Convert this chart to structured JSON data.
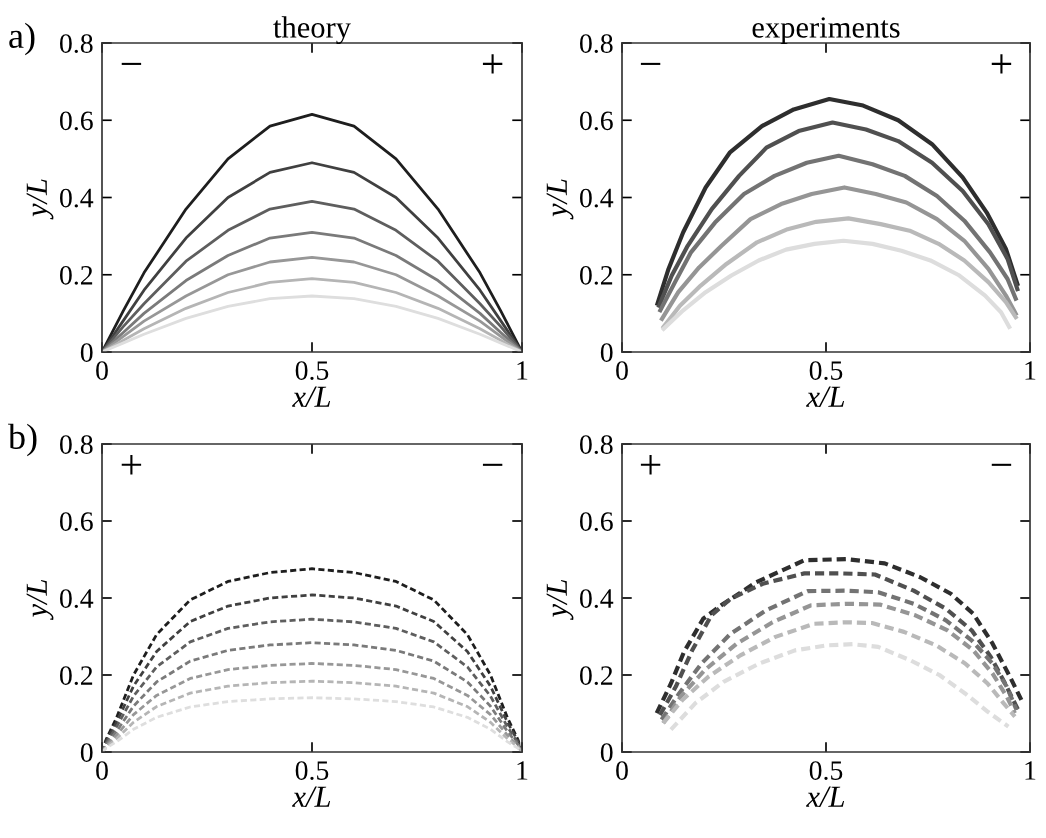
{
  "chart_data": [
    {
      "type": "line",
      "title": "theory",
      "xlabel": "x/L",
      "ylabel": "y/L",
      "annotations": [
        "a)",
        "−",
        "+"
      ],
      "line_style": "solid",
      "marker": "none",
      "grid": false,
      "legend": false,
      "xlim": [
        0,
        1
      ],
      "xticks": [
        0,
        0.5,
        1
      ],
      "ylim": [
        0,
        0.8
      ],
      "yticks": [
        0,
        0.2,
        0.4,
        0.6,
        0.8
      ],
      "x": [
        0,
        0.05,
        0.1,
        0.2,
        0.3,
        0.4,
        0.5,
        0.6,
        0.7,
        0.8,
        0.9,
        0.95,
        1
      ],
      "series": [
        {
          "color": "#1e1e1e",
          "values": [
            0,
            0.105,
            0.205,
            0.37,
            0.5,
            0.585,
            0.615,
            0.585,
            0.5,
            0.37,
            0.205,
            0.105,
            0
          ]
        },
        {
          "color": "#404040",
          "values": [
            0,
            0.08,
            0.16,
            0.295,
            0.4,
            0.465,
            0.49,
            0.465,
            0.4,
            0.295,
            0.16,
            0.08,
            0
          ]
        },
        {
          "color": "#5e5e5e",
          "values": [
            0,
            0.065,
            0.125,
            0.235,
            0.315,
            0.37,
            0.39,
            0.37,
            0.315,
            0.235,
            0.125,
            0.065,
            0
          ]
        },
        {
          "color": "#7a7a7a",
          "values": [
            0,
            0.05,
            0.1,
            0.185,
            0.25,
            0.295,
            0.31,
            0.295,
            0.25,
            0.185,
            0.1,
            0.05,
            0
          ]
        },
        {
          "color": "#979797",
          "values": [
            0,
            0.04,
            0.08,
            0.145,
            0.2,
            0.233,
            0.245,
            0.233,
            0.2,
            0.145,
            0.08,
            0.04,
            0
          ]
        },
        {
          "color": "#b5b5b5",
          "values": [
            0,
            0.03,
            0.06,
            0.113,
            0.154,
            0.18,
            0.19,
            0.18,
            0.154,
            0.113,
            0.06,
            0.03,
            0
          ]
        },
        {
          "color": "#dedede",
          "values": [
            0,
            0.023,
            0.046,
            0.087,
            0.118,
            0.138,
            0.145,
            0.138,
            0.118,
            0.087,
            0.046,
            0.023,
            0
          ]
        }
      ]
    },
    {
      "type": "line",
      "title": "experiments",
      "xlabel": "x/L",
      "ylabel": "y/L",
      "annotations": [
        "−",
        "+"
      ],
      "line_style": "solid",
      "marker": "none",
      "grid": false,
      "legend": false,
      "xlim": [
        0,
        1
      ],
      "xticks": [
        0,
        0.5,
        1
      ],
      "ylim": [
        0,
        0.8
      ],
      "yticks": [
        0,
        0.2,
        0.4,
        0.6,
        0.8
      ],
      "series": [
        {
          "color": "#2e2e2e",
          "x": [
            0.087,
            0.114,
            0.15,
            0.205,
            0.264,
            0.343,
            0.421,
            0.508,
            0.591,
            0.677,
            0.76,
            0.835,
            0.894,
            0.941,
            0.969
          ],
          "values": [
            0.125,
            0.215,
            0.31,
            0.426,
            0.516,
            0.585,
            0.628,
            0.655,
            0.638,
            0.6,
            0.538,
            0.452,
            0.361,
            0.267,
            0.176
          ]
        },
        {
          "color": "#505050",
          "x": [
            0.091,
            0.122,
            0.161,
            0.22,
            0.287,
            0.354,
            0.433,
            0.516,
            0.598,
            0.677,
            0.76,
            0.835,
            0.898,
            0.945,
            0.969
          ],
          "values": [
            0.12,
            0.198,
            0.275,
            0.37,
            0.456,
            0.529,
            0.572,
            0.594,
            0.576,
            0.546,
            0.49,
            0.417,
            0.331,
            0.241,
            0.163
          ]
        },
        {
          "color": "#737373",
          "x": [
            0.094,
            0.13,
            0.169,
            0.228,
            0.299,
            0.374,
            0.453,
            0.531,
            0.614,
            0.693,
            0.772,
            0.839,
            0.902,
            0.945,
            0.965
          ],
          "values": [
            0.108,
            0.181,
            0.258,
            0.335,
            0.409,
            0.456,
            0.49,
            0.508,
            0.486,
            0.456,
            0.404,
            0.34,
            0.258,
            0.189,
            0.138
          ]
        },
        {
          "color": "#959595",
          "x": [
            0.098,
            0.138,
            0.189,
            0.244,
            0.315,
            0.39,
            0.465,
            0.545,
            0.622,
            0.697,
            0.772,
            0.839,
            0.898,
            0.941,
            0.965
          ],
          "values": [
            0.086,
            0.155,
            0.219,
            0.275,
            0.344,
            0.383,
            0.409,
            0.426,
            0.409,
            0.387,
            0.344,
            0.288,
            0.215,
            0.146,
            0.099
          ]
        },
        {
          "color": "#b9b9b9",
          "x": [
            0.102,
            0.142,
            0.193,
            0.256,
            0.331,
            0.406,
            0.476,
            0.555,
            0.634,
            0.705,
            0.776,
            0.839,
            0.898,
            0.941,
            0.965
          ],
          "values": [
            0.065,
            0.12,
            0.172,
            0.228,
            0.284,
            0.318,
            0.337,
            0.346,
            0.331,
            0.314,
            0.28,
            0.237,
            0.181,
            0.129,
            0.09
          ]
        },
        {
          "color": "#dddddd",
          "x": [
            0.102,
            0.15,
            0.205,
            0.268,
            0.335,
            0.402,
            0.472,
            0.543,
            0.614,
            0.685,
            0.756,
            0.827,
            0.89,
            0.929,
            0.949
          ],
          "values": [
            0.06,
            0.108,
            0.155,
            0.198,
            0.237,
            0.265,
            0.28,
            0.288,
            0.28,
            0.262,
            0.237,
            0.198,
            0.146,
            0.103,
            0.065
          ]
        }
      ]
    },
    {
      "type": "line",
      "xlabel": "x/L",
      "ylabel": "y/L",
      "annotations": [
        "b)",
        "+",
        "−"
      ],
      "line_style": "dashed",
      "marker": "none",
      "grid": false,
      "legend": false,
      "xlim": [
        0,
        1
      ],
      "xticks": [
        0,
        0.5,
        1
      ],
      "ylim": [
        0,
        0.8
      ],
      "yticks": [
        0,
        0.2,
        0.4,
        0.6,
        0.8
      ],
      "x": [
        0,
        0.01,
        0.035,
        0.075,
        0.13,
        0.21,
        0.3,
        0.4,
        0.5,
        0.6,
        0.7,
        0.79,
        0.87,
        0.925,
        0.965,
        0.99,
        1
      ],
      "series": [
        {
          "color": "#1e1e1e",
          "values": [
            0,
            0.033,
            0.09,
            0.2,
            0.305,
            0.395,
            0.443,
            0.466,
            0.476,
            0.466,
            0.443,
            0.395,
            0.305,
            0.2,
            0.09,
            0.033,
            0
          ]
        },
        {
          "color": "#404040",
          "values": [
            0,
            0.029,
            0.078,
            0.171,
            0.261,
            0.339,
            0.379,
            0.4,
            0.408,
            0.4,
            0.379,
            0.339,
            0.261,
            0.171,
            0.078,
            0.029,
            0
          ]
        },
        {
          "color": "#5e5e5e",
          "values": [
            0,
            0.024,
            0.066,
            0.145,
            0.221,
            0.286,
            0.321,
            0.338,
            0.345,
            0.338,
            0.321,
            0.286,
            0.221,
            0.145,
            0.066,
            0.024,
            0
          ]
        },
        {
          "color": "#7a7a7a",
          "values": [
            0,
            0.02,
            0.054,
            0.119,
            0.182,
            0.236,
            0.264,
            0.278,
            0.284,
            0.278,
            0.264,
            0.236,
            0.182,
            0.119,
            0.054,
            0.02,
            0
          ]
        },
        {
          "color": "#979797",
          "values": [
            0,
            0.016,
            0.044,
            0.097,
            0.147,
            0.191,
            0.214,
            0.225,
            0.23,
            0.225,
            0.214,
            0.191,
            0.147,
            0.097,
            0.044,
            0.016,
            0
          ]
        },
        {
          "color": "#b5b5b5",
          "values": [
            0,
            0.013,
            0.035,
            0.077,
            0.118,
            0.153,
            0.171,
            0.18,
            0.184,
            0.18,
            0.171,
            0.153,
            0.118,
            0.077,
            0.035,
            0.013,
            0
          ]
        },
        {
          "color": "#dedede",
          "values": [
            0,
            0.01,
            0.027,
            0.059,
            0.09,
            0.117,
            0.131,
            0.138,
            0.141,
            0.138,
            0.131,
            0.117,
            0.09,
            0.059,
            0.027,
            0.01,
            0
          ]
        }
      ]
    },
    {
      "type": "line",
      "xlabel": "x/L",
      "ylabel": "y/L",
      "annotations": [
        "+",
        "−"
      ],
      "line_style": "dashed",
      "marker": "none",
      "grid": false,
      "legend": false,
      "xlim": [
        0,
        1
      ],
      "xticks": [
        0,
        0.5,
        1
      ],
      "ylim": [
        0,
        0.8
      ],
      "yticks": [
        0,
        0.2,
        0.4,
        0.6,
        0.8
      ],
      "series": [
        {
          "color": "#2e2e2e",
          "x": [
            0.085,
            0.12,
            0.152,
            0.199,
            0.243,
            0.329,
            0.447,
            0.55,
            0.644,
            0.731,
            0.806,
            0.861,
            0.908,
            0.951,
            0.979
          ],
          "values": [
            0.101,
            0.178,
            0.26,
            0.346,
            0.381,
            0.441,
            0.498,
            0.501,
            0.49,
            0.454,
            0.411,
            0.359,
            0.282,
            0.195,
            0.135
          ]
        },
        {
          "color": "#505050",
          "x": [
            0.093,
            0.132,
            0.172,
            0.219,
            0.266,
            0.345,
            0.447,
            0.534,
            0.62,
            0.715,
            0.794,
            0.857,
            0.904,
            0.939,
            0.971
          ],
          "values": [
            0.096,
            0.17,
            0.264,
            0.355,
            0.398,
            0.437,
            0.464,
            0.464,
            0.461,
            0.419,
            0.372,
            0.316,
            0.247,
            0.178,
            0.109
          ]
        },
        {
          "color": "#737373",
          "x": [
            0.097,
            0.14,
            0.195,
            0.266,
            0.353,
            0.455,
            0.55,
            0.628,
            0.715,
            0.794,
            0.857,
            0.908,
            0.943,
            0.967
          ],
          "values": [
            0.084,
            0.152,
            0.23,
            0.307,
            0.368,
            0.418,
            0.419,
            0.415,
            0.385,
            0.342,
            0.29,
            0.23,
            0.17,
            0.109
          ]
        },
        {
          "color": "#959595",
          "x": [
            0.101,
            0.144,
            0.203,
            0.282,
            0.369,
            0.463,
            0.55,
            0.632,
            0.719,
            0.798,
            0.861,
            0.908,
            0.943,
            0.963
          ],
          "values": [
            0.075,
            0.144,
            0.213,
            0.282,
            0.337,
            0.381,
            0.385,
            0.383,
            0.355,
            0.316,
            0.264,
            0.204,
            0.144,
            0.101
          ]
        },
        {
          "color": "#b9b9b9",
          "x": [
            0.101,
            0.148,
            0.211,
            0.29,
            0.376,
            0.471,
            0.55,
            0.613,
            0.691,
            0.77,
            0.841,
            0.896,
            0.935,
            0.963
          ],
          "values": [
            0.075,
            0.135,
            0.195,
            0.251,
            0.299,
            0.333,
            0.337,
            0.335,
            0.312,
            0.277,
            0.23,
            0.178,
            0.127,
            0.092
          ]
        },
        {
          "color": "#dddddd",
          "x": [
            0.12,
            0.18,
            0.25,
            0.337,
            0.424,
            0.502,
            0.565,
            0.628,
            0.707,
            0.778,
            0.841,
            0.896,
            0.947
          ],
          "values": [
            0.058,
            0.127,
            0.183,
            0.23,
            0.264,
            0.277,
            0.28,
            0.273,
            0.238,
            0.2,
            0.152,
            0.105,
            0.066
          ]
        }
      ]
    }
  ]
}
